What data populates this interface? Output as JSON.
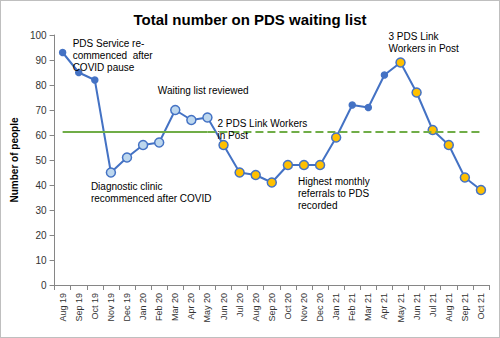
{
  "chart_data": {
    "type": "line",
    "title": "Total number on PDS waiting list",
    "y_label": "Number of people",
    "categories": [
      "Aug 19",
      "Sep 19",
      "Oct 19",
      "Nov 19",
      "Dec 19",
      "Jan 20",
      "Feb 20",
      "Mar 20",
      "Apr 20",
      "May 20",
      "Jun 20",
      "Jul 20",
      "Aug 20",
      "Sep 20",
      "Oct 20",
      "Nov 20",
      "Dec 20",
      "Jan 21",
      "Feb 21",
      "Mar 21",
      "Apr 21",
      "May 21",
      "Jun 21",
      "Jul 21",
      "Aug 21",
      "Sep 21",
      "Oct 21"
    ],
    "values": [
      93,
      85,
      82,
      45,
      51,
      56,
      57,
      70,
      66,
      67,
      56,
      45,
      44,
      41,
      48,
      48,
      48,
      59,
      72,
      71,
      84,
      89,
      77,
      62,
      56,
      43,
      38
    ],
    "color": "#4472c4",
    "colors": [
      "#4472c4",
      "#4472c4",
      "#4472c4",
      "#bdd7ee",
      "#bdd7ee",
      "#bdd7ee",
      "#bdd7ee",
      "#bdd7ee",
      "#bdd7ee",
      "#bdd7ee",
      "#ffc000",
      "#ffc000",
      "#ffc000",
      "#ffc000",
      "#ffc000",
      "#ffc000",
      "#ffc000",
      "#ffc000",
      "#4472c4",
      "#4472c4",
      "#4472c4",
      "#ffc000",
      "#ffc000",
      "#ffc000",
      "#ffc000",
      "#ffc000",
      "#ffc000"
    ],
    "marker": "circle",
    "ylim": [
      0,
      100
    ],
    "yticks": [
      0,
      10,
      20,
      30,
      40,
      50,
      60,
      70,
      80,
      90,
      100
    ],
    "grid": false,
    "median": {
      "value": 61.5,
      "color": "#70ad47",
      "solid_through": "May 20"
    },
    "annotations": [
      {
        "text": "PDS Service re-\ncommenced  after\nCOVID pause",
        "category": "Aug 19"
      },
      {
        "text": "Diagnostic clinic\nrecommenced after COVID",
        "category": "Nov 19"
      },
      {
        "text": "Waiting list reviewed",
        "category": "Mar 20"
      },
      {
        "text": "2 PDS Link Workers\nin Post",
        "category": "May 20"
      },
      {
        "text": "Highest monthly\nreferrals to PDS\nrecorded",
        "category": "Nov 20"
      },
      {
        "text": "3 PDS Link\nWorkers in Post",
        "category": "May 21"
      }
    ]
  }
}
